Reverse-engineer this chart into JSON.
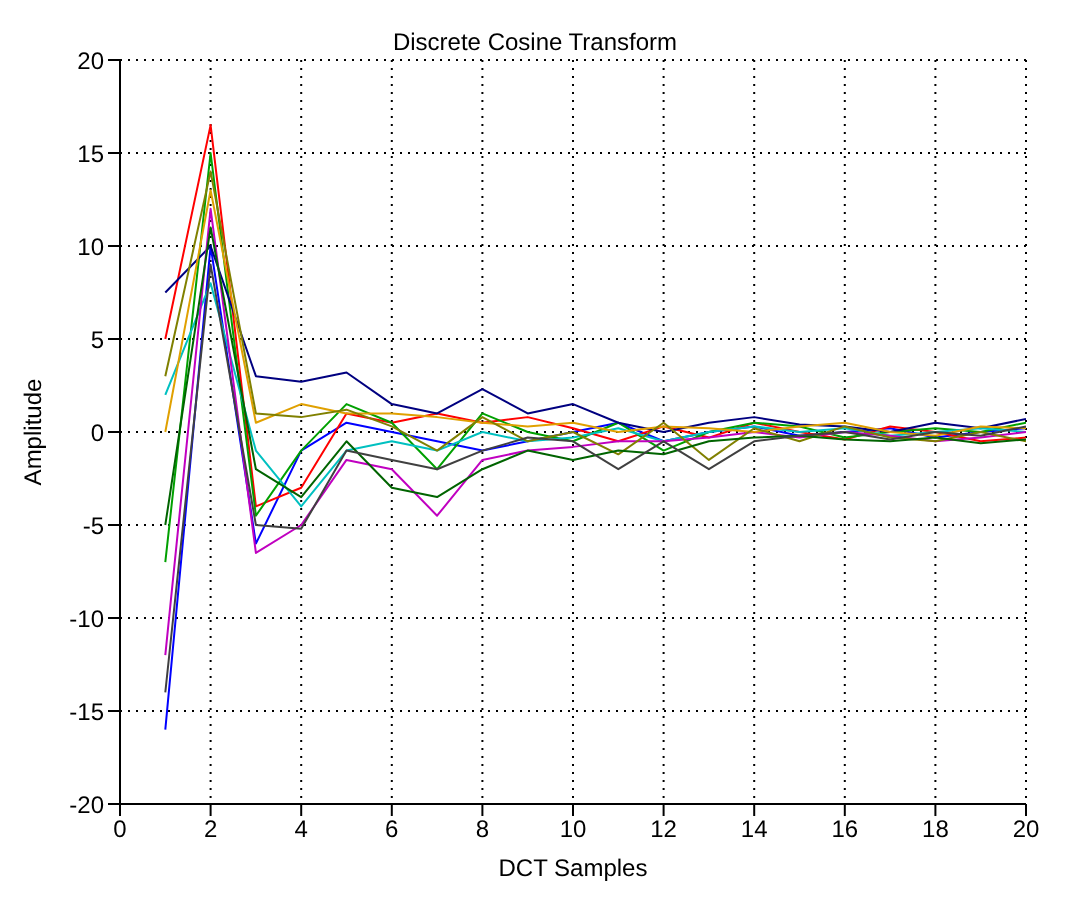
{
  "chart_data": {
    "type": "line",
    "title": "Discrete Cosine Transform",
    "xlabel": "DCT Samples",
    "ylabel": "Amplitude",
    "x": [
      1,
      2,
      3,
      4,
      5,
      6,
      7,
      8,
      9,
      10,
      11,
      12,
      13,
      14,
      15,
      16,
      17,
      18,
      19,
      20
    ],
    "series": [
      {
        "color": "#0000ff",
        "values": [
          -16,
          10,
          -6,
          -1,
          0.5,
          0,
          -0.5,
          -1,
          -0.5,
          0,
          0.5,
          -0.5,
          0,
          0.3,
          -0.2,
          0,
          0.2,
          -0.3,
          0,
          0.2
        ]
      },
      {
        "color": "#ff0000",
        "values": [
          5,
          16.5,
          -4,
          -3,
          1,
          0.5,
          1,
          0.5,
          0.8,
          0.2,
          -0.5,
          0.3,
          -0.3,
          0.5,
          0,
          -0.4,
          0.3,
          0,
          -0.5,
          -0.3
        ]
      },
      {
        "color": "#00a000",
        "values": [
          -7,
          15,
          -4.5,
          -1,
          1.5,
          0.5,
          -2,
          1,
          0,
          -0.5,
          0.5,
          -1,
          0,
          0.5,
          0.3,
          -0.3,
          0,
          0.2,
          0,
          0.5
        ]
      },
      {
        "color": "#000080",
        "values": [
          7.5,
          10,
          3,
          2.7,
          3.2,
          1.5,
          1,
          2.3,
          1,
          1.5,
          0.5,
          0,
          0.5,
          0.8,
          0.4,
          0.3,
          0,
          0.5,
          0.2,
          0.7
        ]
      },
      {
        "color": "#00c0c0",
        "values": [
          2,
          8,
          -1,
          -4,
          -1,
          -0.5,
          -1,
          0,
          -0.5,
          -0.3,
          0.2,
          -0.5,
          0,
          0.3,
          0,
          0.2,
          -0.2,
          0,
          0.2,
          0
        ]
      },
      {
        "color": "#c000c0",
        "values": [
          -12,
          12,
          -6.5,
          -5,
          -1.5,
          -2,
          -4.5,
          -1.5,
          -1,
          -0.8,
          -0.5,
          -0.5,
          -0.3,
          0,
          -0.3,
          0,
          -0.2,
          -0.5,
          -0.3,
          0
        ]
      },
      {
        "color": "#e0a000",
        "values": [
          0,
          13,
          0.5,
          1.5,
          1,
          1,
          0.8,
          0.5,
          0.3,
          0.5,
          0,
          0.3,
          0.2,
          0,
          0.3,
          0.5,
          0,
          -0.2,
          0.3,
          0.2
        ]
      },
      {
        "color": "#808000",
        "values": [
          3,
          14,
          1,
          0.8,
          1.2,
          0.3,
          -1,
          0.8,
          -0.5,
          0,
          -1.2,
          0.5,
          -1.5,
          0.2,
          -0.5,
          0.3,
          -0.3,
          -0.5,
          0,
          -0.5
        ]
      },
      {
        "color": "#006400",
        "values": [
          -5,
          11,
          -2,
          -3.5,
          -0.5,
          -3,
          -3.5,
          -2,
          -1,
          -1.5,
          -1,
          -1.2,
          -0.5,
          -0.3,
          -0.2,
          -0.4,
          -0.5,
          -0.3,
          -0.6,
          -0.4
        ]
      },
      {
        "color": "#404040",
        "values": [
          -14,
          9,
          -5,
          -5.2,
          -1,
          -1.5,
          -2,
          -1,
          -0.3,
          -0.5,
          -2,
          -0.5,
          -2,
          -0.5,
          -0.2,
          0,
          -0.4,
          0,
          -0.2,
          0.3
        ]
      }
    ],
    "xlim": [
      0,
      20
    ],
    "xticks": [
      0,
      2,
      4,
      6,
      8,
      10,
      12,
      14,
      16,
      18,
      20
    ],
    "ylim": [
      -20,
      20
    ],
    "yticks": [
      -20,
      -15,
      -10,
      -5,
      0,
      5,
      10,
      15,
      20
    ],
    "grid": true,
    "legend": false
  }
}
